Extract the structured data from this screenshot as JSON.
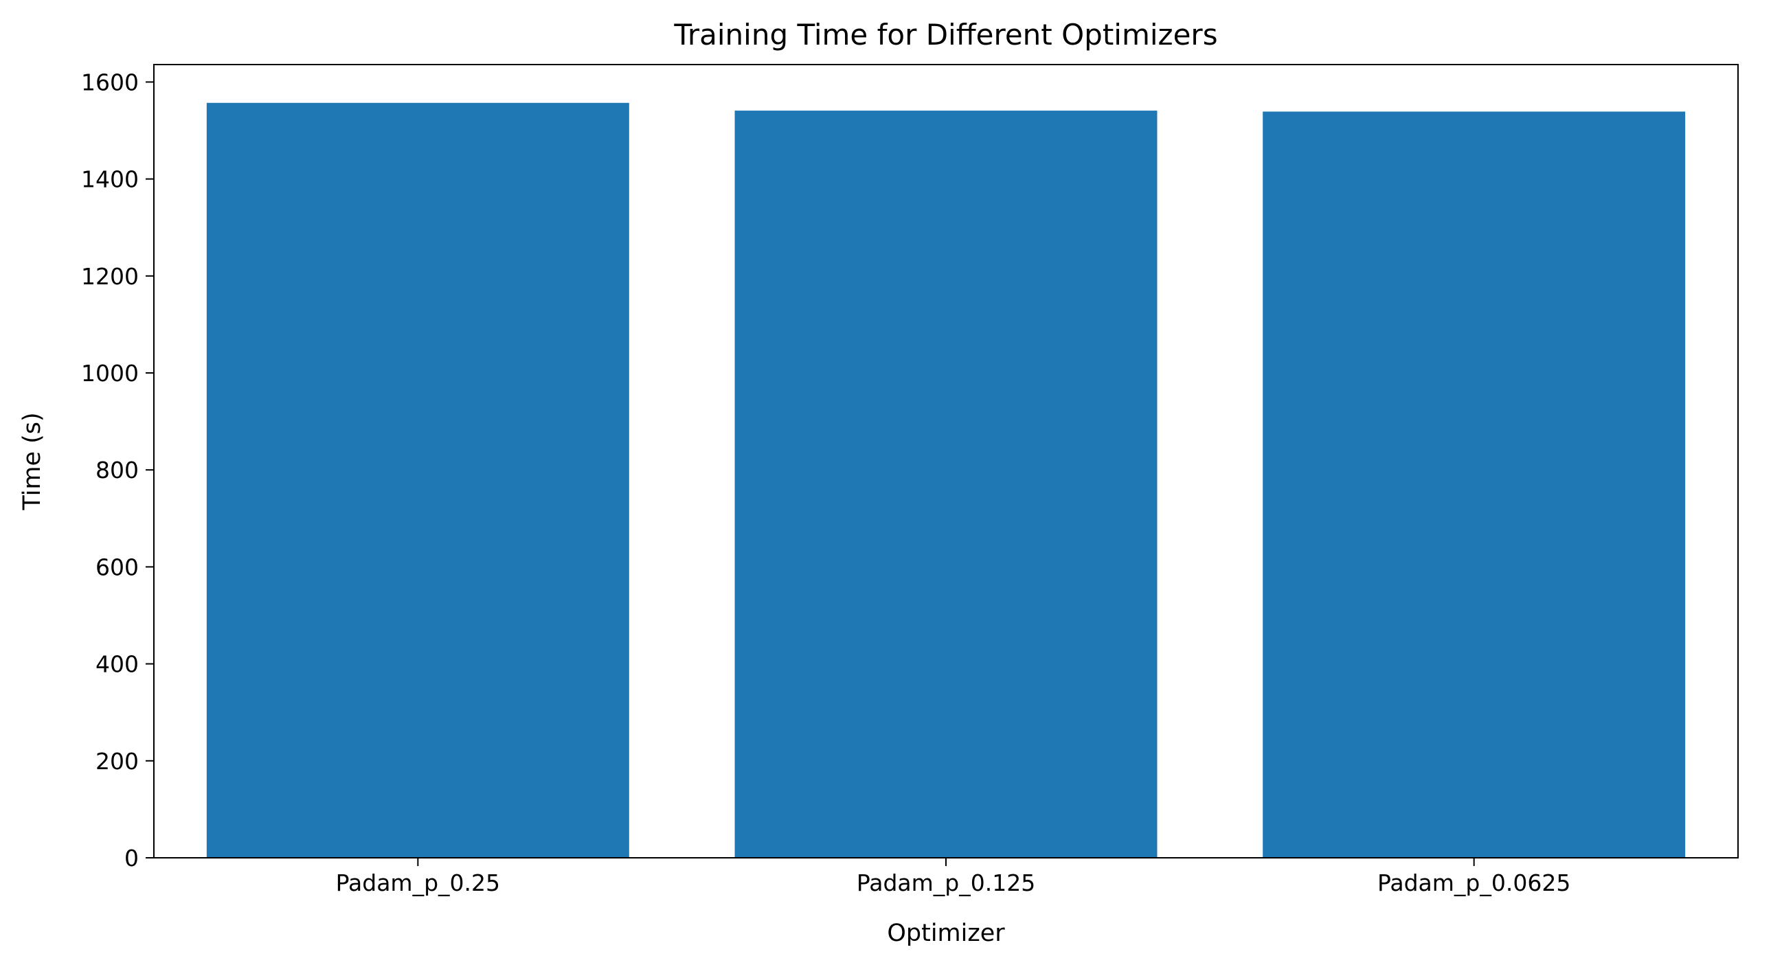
{
  "chart_data": {
    "type": "bar",
    "title": "Training Time for Different Optimizers",
    "xlabel": "Optimizer",
    "ylabel": "Time (s)",
    "categories": [
      "Padam_p_0.25",
      "Padam_p_0.125",
      "Padam_p_0.0625"
    ],
    "values": [
      1557,
      1541,
      1539
    ],
    "ylim": [
      0,
      1636
    ],
    "yticks": [
      0,
      200,
      400,
      600,
      800,
      1000,
      1200,
      1400,
      1600
    ],
    "ytick_labels": [
      "0",
      "200",
      "400",
      "600",
      "800",
      "1000",
      "1200",
      "1400",
      "1600"
    ],
    "grid": false,
    "legend": "none",
    "colors": {
      "bar": "#1f77b4",
      "axis": "#000000",
      "background": "#ffffff"
    }
  }
}
